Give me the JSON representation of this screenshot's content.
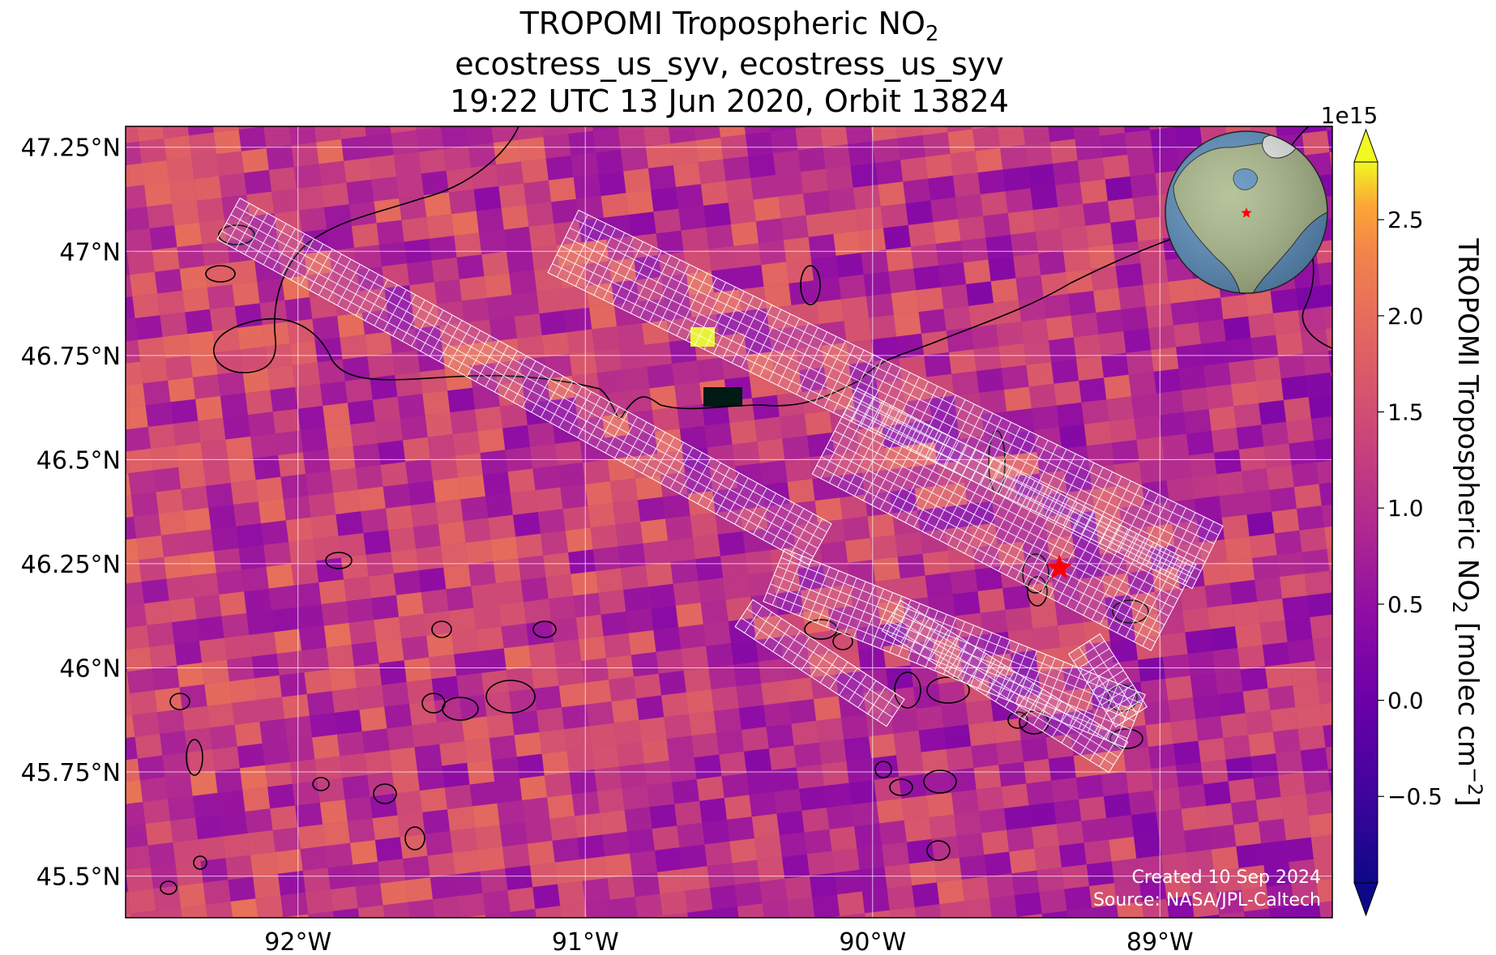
{
  "title": {
    "line1_prefix": "TROPOMI Tropospheric NO",
    "line1_sub": "2",
    "line2": "ecostress_us_syv, ecostress_us_syv",
    "line3": "19:22 UTC 13 Jun 2020, Orbit 13824"
  },
  "map": {
    "lon_range": [
      -92.6,
      -88.4
    ],
    "lat_range": [
      45.4,
      47.3
    ],
    "lon_ticks": [
      {
        "value": -92,
        "label": "92°W"
      },
      {
        "value": -91,
        "label": "91°W"
      },
      {
        "value": -90,
        "label": "90°W"
      },
      {
        "value": -89,
        "label": "89°W"
      }
    ],
    "lat_ticks": [
      {
        "value": 47.25,
        "label": "47.25°N"
      },
      {
        "value": 47.0,
        "label": "47°N"
      },
      {
        "value": 46.75,
        "label": "46.75°N"
      },
      {
        "value": 46.5,
        "label": "46.5°N"
      },
      {
        "value": 46.25,
        "label": "46.25°N"
      },
      {
        "value": 46.0,
        "label": "46°N"
      },
      {
        "value": 45.75,
        "label": "45.75°N"
      },
      {
        "value": 45.5,
        "label": "45.5°N"
      }
    ],
    "grid": true,
    "site_marker": {
      "lon": -89.35,
      "lat": 46.24,
      "symbol": "star",
      "color": "#ff0000"
    },
    "coastline_color": "#000000",
    "footprint_color": "#ffffff"
  },
  "colorbar": {
    "label_prefix": "TROPOMI Tropospheric NO",
    "label_sub": "2",
    "label_suffix": " [molec cm",
    "label_sup": "−2",
    "label_end": "]",
    "scale": "1e15",
    "range": [
      -0.95,
      2.8
    ],
    "extend": "both",
    "colormap": "plasma",
    "ticks": [
      {
        "value": 2.5,
        "label": "2.5"
      },
      {
        "value": 2.0,
        "label": "2.0"
      },
      {
        "value": 1.5,
        "label": "1.5"
      },
      {
        "value": 1.0,
        "label": "1.0"
      },
      {
        "value": 0.5,
        "label": "0.5"
      },
      {
        "value": 0.0,
        "label": "0.0"
      },
      {
        "value": -0.5,
        "label": "−0.5"
      }
    ]
  },
  "credits": {
    "created": "Created 10 Sep 2024",
    "source": "Source: NASA/JPL-Caltech"
  },
  "inset_globe": {
    "marker_color": "#ff0000",
    "ocean_color": "#5b8fbf",
    "land_color": "#a9b98a"
  }
}
